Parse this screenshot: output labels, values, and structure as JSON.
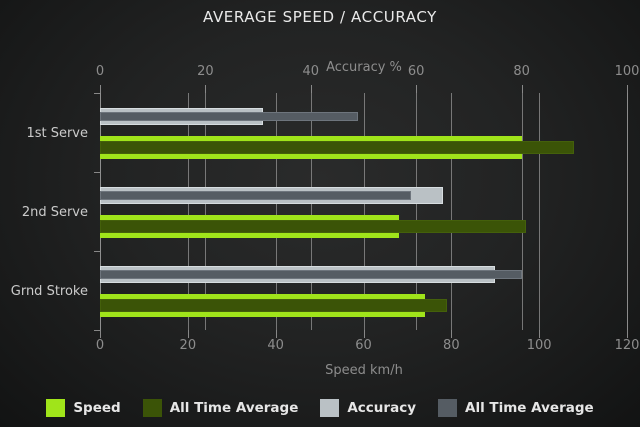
{
  "title": "AVERAGE SPEED / ACCURACY",
  "chart_data": {
    "type": "bar",
    "orientation": "horizontal",
    "title": "AVERAGE SPEED / ACCURACY",
    "categories": [
      "1st Serve",
      "2nd Serve",
      "Grnd Stroke"
    ],
    "series": [
      {
        "id": "speed",
        "name": "Speed",
        "axis": "bottom",
        "role": "main",
        "color": "#A0E41A",
        "values": [
          96,
          68,
          74
        ]
      },
      {
        "id": "speed-all-time-average",
        "name": "All Time Average",
        "axis": "bottom",
        "role": "overlay",
        "color": "#3B5407",
        "values": [
          108,
          97,
          79
        ]
      },
      {
        "id": "accuracy",
        "name": "Accuracy",
        "axis": "top",
        "role": "main",
        "color": "#BAC1C5",
        "values": [
          31,
          65,
          75
        ]
      },
      {
        "id": "accuracy-all-time-average",
        "name": "All Time Average",
        "axis": "top",
        "role": "overlay",
        "color": "#555C63",
        "values": [
          49,
          59,
          80
        ]
      }
    ],
    "top_axis": {
      "label": "Accuracy %",
      "min": 0,
      "max": 100,
      "ticks": [
        0,
        20,
        40,
        60,
        80,
        100
      ]
    },
    "bottom_axis": {
      "label": "Speed km/h",
      "min": 0,
      "max": 120,
      "ticks": [
        0,
        20,
        40,
        60,
        80,
        100,
        120
      ]
    },
    "grid": true,
    "legend_position": "bottom",
    "colors": {
      "background": "#1e1f1f",
      "grid": "#949494",
      "title_text": "#e9e9e9",
      "axis_text": "#8d8d8d",
      "category_text": "#cbcbcb",
      "legend_text": "#e6e6e6"
    }
  }
}
